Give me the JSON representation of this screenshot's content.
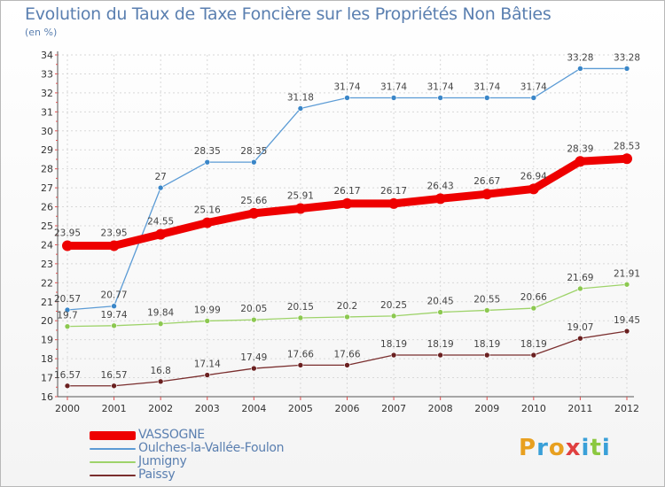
{
  "colors": {
    "axis": "#555555",
    "grid": "#d8d8d8",
    "ticks_red": "#e05050"
  },
  "logo": {
    "text": "Proxiti",
    "letter_colors": [
      "#e8a020",
      "#3aa0d8",
      "#e8a020",
      "#e04040",
      "#3aa0d8",
      "#8cc840",
      "#3aa0d8"
    ]
  },
  "chart_data": {
    "type": "line",
    "title": "Evolution du Taux de Taxe Foncière sur les Propriétés Non Bâties",
    "ylabel": "(en %)",
    "xlabel": "",
    "ylim": [
      16,
      34
    ],
    "yticks": [
      16,
      17,
      18,
      19,
      20,
      21,
      22,
      23,
      24,
      25,
      26,
      27,
      28,
      29,
      30,
      31,
      32,
      33,
      34
    ],
    "x": [
      "2000",
      "2001",
      "2002",
      "2003",
      "2004",
      "2005",
      "2006",
      "2007",
      "2008",
      "2009",
      "2010",
      "2011",
      "2012"
    ],
    "legend_position": "bottom-left",
    "series": [
      {
        "name": "Oulches-la-Vallée-Foulon",
        "color": "#5b9bd5",
        "marker": "#3a86c8",
        "values": [
          20.57,
          20.77,
          27,
          28.35,
          28.35,
          31.18,
          31.74,
          31.74,
          31.74,
          31.74,
          31.74,
          33.28,
          33.28
        ],
        "labels": [
          "20.57",
          "20.77",
          "27",
          "28.35",
          "28.35",
          "31.18",
          "31.74",
          "31.74",
          "31.74",
          "31.74",
          "31.74",
          "33.28",
          "33.28"
        ]
      },
      {
        "name": "Jumigny",
        "color": "#9ed36a",
        "marker": "#8cc850",
        "values": [
          19.7,
          19.74,
          19.84,
          19.99,
          20.05,
          20.15,
          20.2,
          20.25,
          20.45,
          20.55,
          20.66,
          21.69,
          21.91
        ],
        "labels": [
          "19.7",
          "19.74",
          "19.84",
          "19.99",
          "20.05",
          "20.15",
          "20.2",
          "20.25",
          "20.45",
          "20.55",
          "20.66",
          "21.69",
          "21.91"
        ]
      },
      {
        "name": "Paissy",
        "color": "#7a2e2e",
        "marker": "#6a2020",
        "values": [
          16.57,
          16.57,
          16.8,
          17.14,
          17.49,
          17.66,
          17.66,
          18.19,
          18.19,
          18.19,
          18.19,
          19.07,
          19.45
        ],
        "labels": [
          "16.57",
          "16.57",
          "16.8",
          "17.14",
          "17.49",
          "17.66",
          "17.66",
          "18.19",
          "18.19",
          "18.19",
          "18.19",
          "19.07",
          "19.45"
        ]
      },
      {
        "name": "VASSOGNE",
        "color": "#ee0000",
        "marker": "#ee0000",
        "values": [
          23.95,
          23.95,
          24.55,
          25.16,
          25.66,
          25.91,
          26.17,
          26.17,
          26.43,
          26.67,
          26.94,
          28.39,
          28.53
        ],
        "labels": [
          "23.95",
          "23.95",
          "24.55",
          "25.16",
          "25.66",
          "25.91",
          "26.17",
          "26.17",
          "26.43",
          "26.67",
          "26.94",
          "28.39",
          "28.53"
        ]
      }
    ],
    "legend_order": [
      "VASSOGNE",
      "Oulches-la-Vallée-Foulon",
      "Jumigny",
      "Paissy"
    ]
  }
}
